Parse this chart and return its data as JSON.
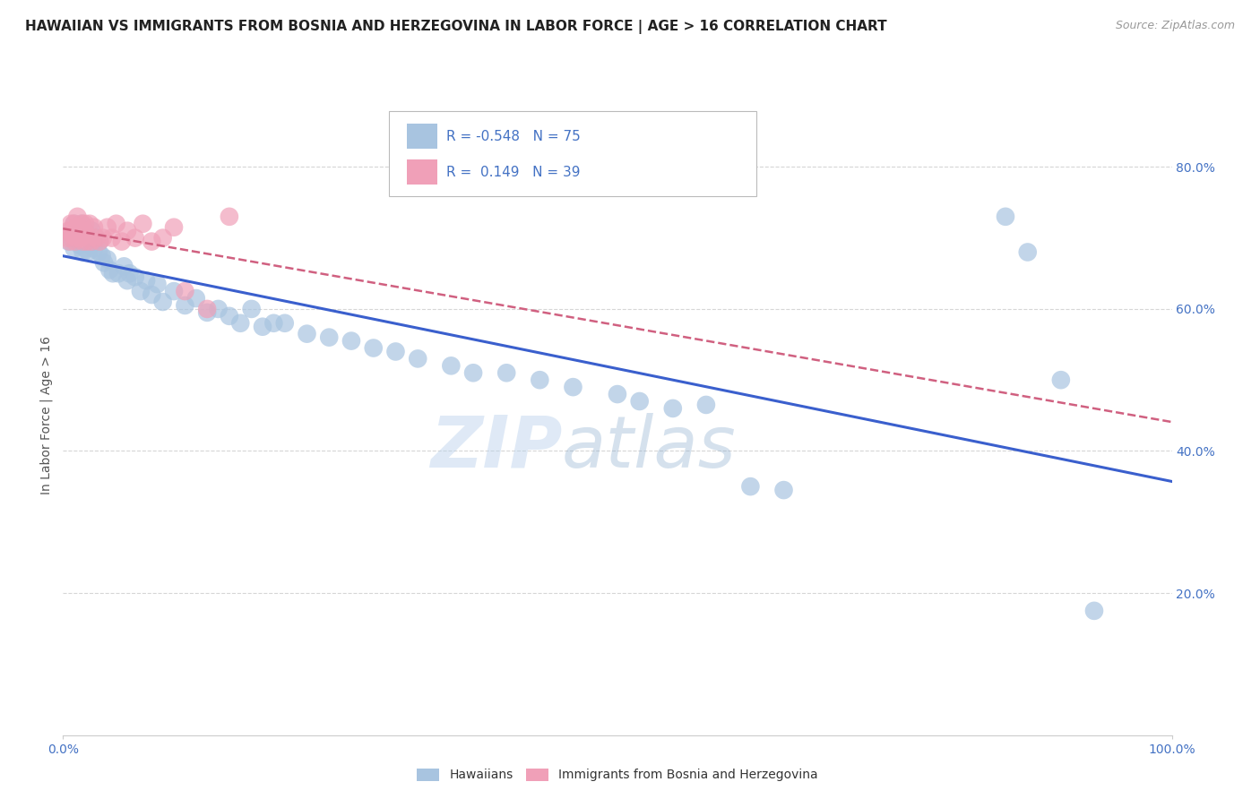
{
  "title": "HAWAIIAN VS IMMIGRANTS FROM BOSNIA AND HERZEGOVINA IN LABOR FORCE | AGE > 16 CORRELATION CHART",
  "source": "Source: ZipAtlas.com",
  "ylabel": "In Labor Force | Age > 16",
  "xlim": [
    0.0,
    1.0
  ],
  "ylim": [
    0.0,
    0.9
  ],
  "xtick_labels": [
    "0.0%",
    "100.0%"
  ],
  "ytick_labels": [
    "20.0%",
    "40.0%",
    "60.0%",
    "80.0%"
  ],
  "yticks": [
    0.2,
    0.4,
    0.6,
    0.8
  ],
  "grid_color": "#cccccc",
  "background_color": "#ffffff",
  "blue_color": "#a8c4e0",
  "pink_color": "#f0a0b8",
  "blue_line_color": "#3a5fcd",
  "pink_line_color": "#d06080",
  "pink_line_dashed": true,
  "legend_R_blue": "-0.548",
  "legend_N_blue": "75",
  "legend_R_pink": "0.149",
  "legend_N_pink": "39",
  "label_blue": "Hawaiians",
  "label_pink": "Immigrants from Bosnia and Herzegovina",
  "title_fontsize": 11,
  "axis_label_color": "#4472c4",
  "blue_scatter_x": [
    0.005,
    0.007,
    0.008,
    0.01,
    0.01,
    0.012,
    0.013,
    0.014,
    0.015,
    0.015,
    0.016,
    0.017,
    0.018,
    0.018,
    0.019,
    0.02,
    0.02,
    0.021,
    0.022,
    0.023,
    0.024,
    0.025,
    0.026,
    0.027,
    0.028,
    0.03,
    0.032,
    0.033,
    0.035,
    0.037,
    0.04,
    0.042,
    0.045,
    0.05,
    0.055,
    0.058,
    0.06,
    0.065,
    0.07,
    0.075,
    0.08,
    0.085,
    0.09,
    0.1,
    0.11,
    0.12,
    0.13,
    0.14,
    0.15,
    0.16,
    0.17,
    0.18,
    0.19,
    0.2,
    0.22,
    0.24,
    0.26,
    0.28,
    0.3,
    0.32,
    0.35,
    0.37,
    0.4,
    0.43,
    0.46,
    0.5,
    0.52,
    0.55,
    0.58,
    0.62,
    0.65,
    0.85,
    0.87,
    0.9,
    0.93
  ],
  "blue_scatter_y": [
    0.695,
    0.71,
    0.7,
    0.72,
    0.685,
    0.7,
    0.715,
    0.695,
    0.71,
    0.69,
    0.705,
    0.72,
    0.68,
    0.7,
    0.695,
    0.71,
    0.685,
    0.7,
    0.695,
    0.68,
    0.7,
    0.69,
    0.71,
    0.695,
    0.685,
    0.7,
    0.68,
    0.695,
    0.675,
    0.665,
    0.67,
    0.655,
    0.65,
    0.65,
    0.66,
    0.64,
    0.65,
    0.645,
    0.625,
    0.64,
    0.62,
    0.635,
    0.61,
    0.625,
    0.605,
    0.615,
    0.595,
    0.6,
    0.59,
    0.58,
    0.6,
    0.575,
    0.58,
    0.58,
    0.565,
    0.56,
    0.555,
    0.545,
    0.54,
    0.53,
    0.52,
    0.51,
    0.51,
    0.5,
    0.49,
    0.48,
    0.47,
    0.46,
    0.465,
    0.35,
    0.345,
    0.73,
    0.68,
    0.5,
    0.175
  ],
  "pink_scatter_x": [
    0.004,
    0.005,
    0.006,
    0.007,
    0.008,
    0.009,
    0.01,
    0.011,
    0.012,
    0.012,
    0.013,
    0.014,
    0.015,
    0.016,
    0.017,
    0.018,
    0.019,
    0.02,
    0.021,
    0.022,
    0.024,
    0.026,
    0.028,
    0.03,
    0.033,
    0.036,
    0.04,
    0.044,
    0.048,
    0.053,
    0.058,
    0.065,
    0.072,
    0.08,
    0.09,
    0.1,
    0.11,
    0.13,
    0.15
  ],
  "pink_scatter_y": [
    0.7,
    0.71,
    0.695,
    0.72,
    0.705,
    0.71,
    0.72,
    0.695,
    0.715,
    0.7,
    0.73,
    0.705,
    0.71,
    0.7,
    0.72,
    0.695,
    0.71,
    0.72,
    0.705,
    0.695,
    0.72,
    0.695,
    0.715,
    0.7,
    0.695,
    0.7,
    0.715,
    0.7,
    0.72,
    0.695,
    0.71,
    0.7,
    0.72,
    0.695,
    0.7,
    0.715,
    0.625,
    0.6,
    0.73
  ]
}
